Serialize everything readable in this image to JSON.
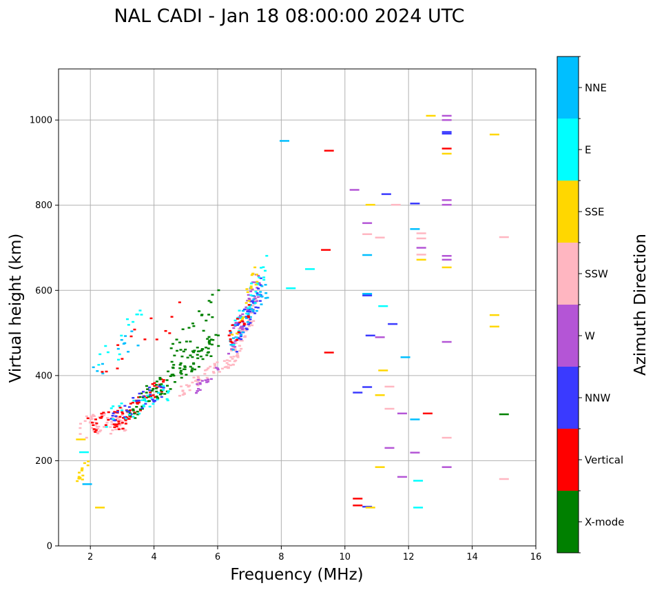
{
  "chart_data": {
    "type": "scatter",
    "title": "NAL CADI - Jan 18 08:00:00 2024 UTC",
    "xlabel": "Frequency (MHz)",
    "ylabel": "Virtual height (km)",
    "xlim": [
      1.0,
      16.0
    ],
    "ylim": [
      0,
      1120
    ],
    "xticks": [
      "2",
      "4",
      "6",
      "8",
      "10",
      "12",
      "14",
      "16"
    ],
    "yticks": [
      "0",
      "200",
      "400",
      "600",
      "800",
      "1000"
    ],
    "grid": true,
    "colorbar": {
      "label": "Azimuth Direction",
      "categories": [
        {
          "name": "X-mode",
          "color": "#008000"
        },
        {
          "name": "Vertical",
          "color": "#ff0000"
        },
        {
          "name": "NNW",
          "color": "#3a3aff"
        },
        {
          "name": "W",
          "color": "#b455d6"
        },
        {
          "name": "SSW",
          "color": "#ffb6c1"
        },
        {
          "name": "SSE",
          "color": "#ffd700"
        },
        {
          "name": "E",
          "color": "#00ffff"
        },
        {
          "name": "NNE",
          "color": "#00bfff"
        }
      ]
    },
    "scattered_echoes": [
      {
        "f": 8.1,
        "h": 951,
        "c": "NNE"
      },
      {
        "f": 9.5,
        "h": 928,
        "c": "Vertical"
      },
      {
        "f": 10.3,
        "h": 836,
        "c": "W"
      },
      {
        "f": 10.8,
        "h": 801,
        "c": "SSE"
      },
      {
        "f": 11.3,
        "h": 826,
        "c": "NNW"
      },
      {
        "f": 11.6,
        "h": 801,
        "c": "SSW"
      },
      {
        "f": 12.2,
        "h": 804,
        "c": "NNW"
      },
      {
        "f": 12.7,
        "h": 1010,
        "c": "SSE"
      },
      {
        "f": 13.2,
        "h": 1010,
        "c": "W"
      },
      {
        "f": 13.2,
        "h": 1000,
        "c": "W"
      },
      {
        "f": 13.2,
        "h": 972,
        "c": "NNW"
      },
      {
        "f": 13.2,
        "h": 968,
        "c": "NNW"
      },
      {
        "f": 13.2,
        "h": 933,
        "c": "Vertical"
      },
      {
        "f": 13.2,
        "h": 921,
        "c": "SSE"
      },
      {
        "f": 14.7,
        "h": 966,
        "c": "SSE"
      },
      {
        "f": 13.2,
        "h": 812,
        "c": "W"
      },
      {
        "f": 13.2,
        "h": 801,
        "c": "W"
      },
      {
        "f": 10.7,
        "h": 758,
        "c": "W"
      },
      {
        "f": 10.7,
        "h": 732,
        "c": "SSW"
      },
      {
        "f": 11.1,
        "h": 724,
        "c": "SSW"
      },
      {
        "f": 12.2,
        "h": 744,
        "c": "NNE"
      },
      {
        "f": 12.4,
        "h": 734,
        "c": "SSW"
      },
      {
        "f": 12.4,
        "h": 722,
        "c": "SSW"
      },
      {
        "f": 12.4,
        "h": 700,
        "c": "W"
      },
      {
        "f": 12.4,
        "h": 684,
        "c": "SSW"
      },
      {
        "f": 12.4,
        "h": 672,
        "c": "SSE"
      },
      {
        "f": 13.2,
        "h": 681,
        "c": "W"
      },
      {
        "f": 13.2,
        "h": 672,
        "c": "W"
      },
      {
        "f": 13.2,
        "h": 654,
        "c": "SSE"
      },
      {
        "f": 15.0,
        "h": 725,
        "c": "SSW"
      },
      {
        "f": 9.4,
        "h": 695,
        "c": "Vertical"
      },
      {
        "f": 10.7,
        "h": 683,
        "c": "NNE"
      },
      {
        "f": 8.9,
        "h": 650,
        "c": "E"
      },
      {
        "f": 8.3,
        "h": 605,
        "c": "E"
      },
      {
        "f": 10.7,
        "h": 592,
        "c": "NNE"
      },
      {
        "f": 10.7,
        "h": 588,
        "c": "NNW"
      },
      {
        "f": 11.2,
        "h": 563,
        "c": "E"
      },
      {
        "f": 11.5,
        "h": 521,
        "c": "NNW"
      },
      {
        "f": 14.7,
        "h": 542,
        "c": "SSE"
      },
      {
        "f": 14.7,
        "h": 515,
        "c": "SSE"
      },
      {
        "f": 10.8,
        "h": 494,
        "c": "NNW"
      },
      {
        "f": 11.1,
        "h": 490,
        "c": "W"
      },
      {
        "f": 13.2,
        "h": 479,
        "c": "W"
      },
      {
        "f": 9.5,
        "h": 454,
        "c": "Vertical"
      },
      {
        "f": 11.9,
        "h": 443,
        "c": "NNE"
      },
      {
        "f": 11.2,
        "h": 412,
        "c": "SSE"
      },
      {
        "f": 10.7,
        "h": 373,
        "c": "NNW"
      },
      {
        "f": 11.4,
        "h": 374,
        "c": "SSW"
      },
      {
        "f": 10.4,
        "h": 360,
        "c": "NNW"
      },
      {
        "f": 11.1,
        "h": 354,
        "c": "SSE"
      },
      {
        "f": 11.4,
        "h": 322,
        "c": "SSW"
      },
      {
        "f": 11.8,
        "h": 311,
        "c": "W"
      },
      {
        "f": 12.6,
        "h": 311,
        "c": "Vertical"
      },
      {
        "f": 15.0,
        "h": 309,
        "c": "X-mode"
      },
      {
        "f": 12.2,
        "h": 297,
        "c": "NNE"
      },
      {
        "f": 13.2,
        "h": 254,
        "c": "SSW"
      },
      {
        "f": 11.4,
        "h": 230,
        "c": "W"
      },
      {
        "f": 12.2,
        "h": 219,
        "c": "W"
      },
      {
        "f": 11.1,
        "h": 185,
        "c": "SSE"
      },
      {
        "f": 13.2,
        "h": 185,
        "c": "W"
      },
      {
        "f": 11.8,
        "h": 162,
        "c": "W"
      },
      {
        "f": 12.3,
        "h": 153,
        "c": "E"
      },
      {
        "f": 15.0,
        "h": 157,
        "c": "SSW"
      },
      {
        "f": 10.4,
        "h": 111,
        "c": "Vertical"
      },
      {
        "f": 10.4,
        "h": 95,
        "c": "Vertical"
      },
      {
        "f": 10.7,
        "h": 92,
        "c": "NNW"
      },
      {
        "f": 10.8,
        "h": 90,
        "c": "SSE"
      },
      {
        "f": 12.3,
        "h": 90,
        "c": "E"
      },
      {
        "f": 2.3,
        "h": 90,
        "c": "SSE"
      },
      {
        "f": 1.9,
        "h": 145,
        "c": "NNE"
      },
      {
        "f": 1.8,
        "h": 220,
        "c": "E"
      },
      {
        "f": 1.7,
        "h": 250,
        "c": "SSE"
      }
    ],
    "traces": [
      {
        "c": "SSW",
        "f0": 1.7,
        "h0": 275,
        "f1": 3.2,
        "h1": 300,
        "n": 70,
        "spread": 28
      },
      {
        "c": "Vertical",
        "f0": 1.9,
        "h0": 285,
        "f1": 3.2,
        "h1": 300,
        "n": 35,
        "spread": 25
      },
      {
        "c": "Vertical",
        "f0": 2.8,
        "h0": 295,
        "f1": 4.3,
        "h1": 380,
        "n": 45,
        "spread": 20
      },
      {
        "c": "X-mode",
        "f0": 3.2,
        "h0": 315,
        "f1": 6.0,
        "h1": 480,
        "n": 110,
        "spread": 25
      },
      {
        "c": "X-mode",
        "f0": 4.5,
        "h0": 440,
        "f1": 6.1,
        "h1": 580,
        "n": 30,
        "spread": 35
      },
      {
        "c": "NNW",
        "f0": 2.6,
        "h0": 300,
        "f1": 4.3,
        "h1": 370,
        "n": 35,
        "spread": 20
      },
      {
        "c": "E",
        "f0": 2.5,
        "h0": 300,
        "f1": 4.6,
        "h1": 370,
        "n": 30,
        "spread": 25
      },
      {
        "c": "SSW",
        "f0": 4.8,
        "h0": 360,
        "f1": 6.7,
        "h1": 450,
        "n": 55,
        "spread": 15
      },
      {
        "c": "W",
        "f0": 5.3,
        "h0": 370,
        "f1": 6.1,
        "h1": 420,
        "n": 18,
        "spread": 12
      },
      {
        "c": "SSW",
        "f0": 6.4,
        "h0": 440,
        "f1": 7.2,
        "h1": 560,
        "n": 60,
        "spread": 25
      },
      {
        "c": "W",
        "f0": 6.4,
        "h0": 470,
        "f1": 7.3,
        "h1": 620,
        "n": 60,
        "spread": 30
      },
      {
        "c": "NNW",
        "f0": 6.6,
        "h0": 480,
        "f1": 7.4,
        "h1": 610,
        "n": 40,
        "spread": 30
      },
      {
        "c": "NNE",
        "f0": 6.4,
        "h0": 480,
        "f1": 7.6,
        "h1": 610,
        "n": 35,
        "spread": 30
      },
      {
        "c": "E",
        "f0": 6.5,
        "h0": 490,
        "f1": 7.6,
        "h1": 680,
        "n": 25,
        "spread": 30
      },
      {
        "c": "SSE",
        "f0": 6.5,
        "h0": 500,
        "f1": 7.3,
        "h1": 660,
        "n": 18,
        "spread": 30
      },
      {
        "c": "Vertical",
        "f0": 6.3,
        "h0": 480,
        "f1": 7.1,
        "h1": 560,
        "n": 16,
        "spread": 25
      },
      {
        "c": "NNE",
        "f0": 2.0,
        "h0": 400,
        "f1": 3.5,
        "h1": 500,
        "n": 12,
        "spread": 30
      },
      {
        "c": "E",
        "f0": 2.2,
        "h0": 410,
        "f1": 3.9,
        "h1": 570,
        "n": 14,
        "spread": 35
      },
      {
        "c": "Vertical",
        "f0": 2.4,
        "h0": 420,
        "f1": 5.2,
        "h1": 570,
        "n": 14,
        "spread": 35
      },
      {
        "c": "SSE",
        "f0": 1.6,
        "h0": 150,
        "f1": 1.9,
        "h1": 190,
        "n": 14,
        "spread": 12
      }
    ]
  }
}
